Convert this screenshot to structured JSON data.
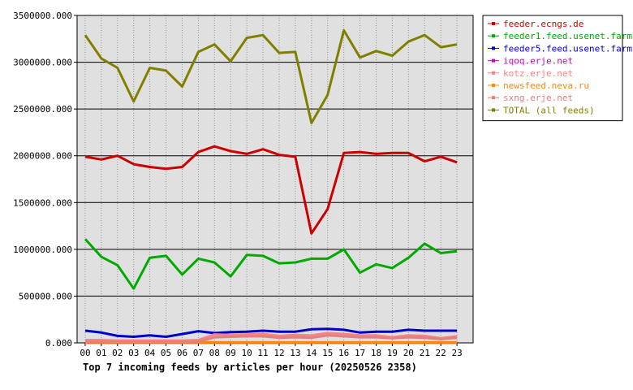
{
  "colors": {
    "plot_background": "#e0e0e0",
    "grid": "#000000",
    "page_background": "#ffffff"
  },
  "chart_data": {
    "type": "line",
    "title": "Top 7 incoming feeds by articles per hour (20250526 2358)",
    "xlabel": "",
    "ylabel": "",
    "categories": [
      "00",
      "01",
      "02",
      "03",
      "04",
      "05",
      "06",
      "07",
      "08",
      "09",
      "10",
      "11",
      "12",
      "13",
      "14",
      "15",
      "16",
      "17",
      "18",
      "19",
      "20",
      "21",
      "22",
      "23"
    ],
    "y_ticks": [
      "0.000",
      "500000.000",
      "1000000.000",
      "1500000.000",
      "2000000.000",
      "2500000.000",
      "3000000.000",
      "3500000.000"
    ],
    "ylim": [
      0,
      3500000
    ],
    "grid": true,
    "legend_position": "right",
    "series": [
      {
        "name": "feeder.ecngs.de",
        "color": "#cc0000",
        "values": [
          1990000,
          1960000,
          2000000,
          1910000,
          1880000,
          1860000,
          1880000,
          2040000,
          2100000,
          2050000,
          2020000,
          2070000,
          2010000,
          1990000,
          1170000,
          1430000,
          2030000,
          2040000,
          2020000,
          2030000,
          2030000,
          1940000,
          1990000,
          1930000
        ]
      },
      {
        "name": "feeder1.feed.usenet.farm",
        "color": "#00aa00",
        "values": [
          1110000,
          920000,
          830000,
          580000,
          910000,
          930000,
          730000,
          900000,
          860000,
          710000,
          940000,
          930000,
          850000,
          860000,
          900000,
          900000,
          1000000,
          750000,
          840000,
          800000,
          910000,
          1060000,
          960000,
          980000
        ]
      },
      {
        "name": "feeder5.feed.usenet.farm",
        "color": "#0000cc",
        "values": [
          130000,
          110000,
          75000,
          65000,
          80000,
          65000,
          95000,
          125000,
          105000,
          115000,
          120000,
          130000,
          120000,
          120000,
          145000,
          150000,
          140000,
          110000,
          120000,
          120000,
          140000,
          130000,
          130000,
          130000
        ]
      },
      {
        "name": "iqoq.erje.net",
        "color": "#cc00cc",
        "values": [
          3000,
          3000,
          3000,
          3000,
          3000,
          3000,
          3000,
          3000,
          3000,
          3000,
          3000,
          3000,
          3000,
          3000,
          3000,
          3000,
          3000,
          3000,
          3000,
          3000,
          3000,
          3000,
          3000,
          3000
        ]
      },
      {
        "name": "kotz.erje.net",
        "color": "#ff8080",
        "values": [
          30000,
          30000,
          25000,
          25000,
          25000,
          25000,
          25000,
          30000,
          90000,
          85000,
          90000,
          95000,
          75000,
          85000,
          80000,
          105000,
          95000,
          80000,
          80000,
          60000,
          80000,
          75000,
          50000,
          70000
        ]
      },
      {
        "name": "newsfeed.neva.ru",
        "color": "#ff8800",
        "values": [
          5000,
          5000,
          5000,
          5000,
          5000,
          5000,
          5000,
          5000,
          5000,
          5000,
          5000,
          5000,
          5000,
          5000,
          5000,
          5000,
          5000,
          5000,
          5000,
          5000,
          5000,
          5000,
          5000,
          5000
        ]
      },
      {
        "name": "sxng.erje.net",
        "color": "#e08080",
        "values": [
          10000,
          10000,
          10000,
          10000,
          10000,
          10000,
          10000,
          10000,
          60000,
          65000,
          70000,
          70000,
          55000,
          60000,
          55000,
          80000,
          70000,
          60000,
          60000,
          50000,
          60000,
          55000,
          40000,
          55000
        ]
      },
      {
        "name": "TOTAL (all feeds)",
        "color": "#808000",
        "values": [
          3290000,
          3040000,
          2940000,
          2580000,
          2940000,
          2910000,
          2740000,
          3110000,
          3190000,
          3010000,
          3260000,
          3290000,
          3100000,
          3110000,
          2350000,
          2650000,
          3340000,
          3050000,
          3120000,
          3070000,
          3220000,
          3290000,
          3160000,
          3190000
        ]
      }
    ]
  }
}
